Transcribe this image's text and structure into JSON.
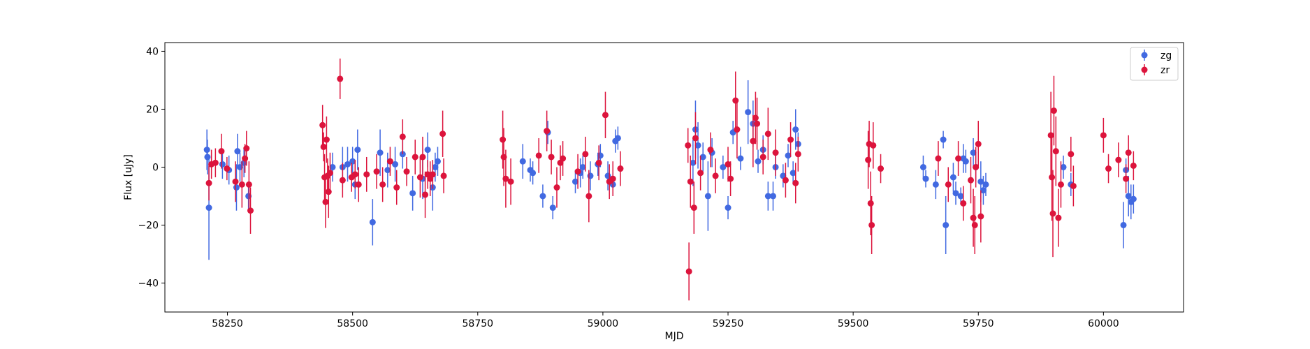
{
  "chart_data": {
    "type": "scatter",
    "title": "",
    "xlabel": "MJD",
    "ylabel": "Flux [uJy]",
    "xlim": [
      58125,
      60160
    ],
    "ylim": [
      -50,
      43
    ],
    "xticks": [
      58250,
      58500,
      58750,
      59000,
      59250,
      59500,
      59750,
      60000
    ],
    "yticks": [
      -40,
      -20,
      0,
      20,
      40
    ],
    "legend": {
      "placement": "top-right"
    },
    "grid": false,
    "series": [
      {
        "name": "zg",
        "color": "#4169e1",
        "points": [
          [
            58209,
            6,
            7
          ],
          [
            58210,
            3.5,
            6
          ],
          [
            58213,
            -14,
            18
          ],
          [
            58240,
            1,
            5
          ],
          [
            58253,
            -1,
            5
          ],
          [
            58268,
            -7,
            8
          ],
          [
            58270,
            5.5,
            6
          ],
          [
            58275,
            0,
            5
          ],
          [
            58283,
            1.5,
            5
          ],
          [
            58292,
            -10,
            5
          ],
          [
            58460,
            0,
            5
          ],
          [
            58480,
            0,
            7
          ],
          [
            58490,
            1,
            6
          ],
          [
            58500,
            2,
            5
          ],
          [
            58505,
            -6,
            5
          ],
          [
            58510,
            6,
            7
          ],
          [
            58540,
            -19,
            8
          ],
          [
            58555,
            5,
            8
          ],
          [
            58570,
            -1,
            6
          ],
          [
            58585,
            1,
            6
          ],
          [
            58600,
            4.5,
            5
          ],
          [
            58620,
            -9,
            6
          ],
          [
            58640,
            -4,
            7
          ],
          [
            58650,
            6,
            6
          ],
          [
            58660,
            -7,
            8
          ],
          [
            58665,
            0,
            5
          ],
          [
            58670,
            2,
            5
          ],
          [
            58840,
            2,
            6
          ],
          [
            58855,
            -1,
            4
          ],
          [
            58860,
            -2,
            4
          ],
          [
            58880,
            -10,
            4
          ],
          [
            58890,
            12,
            4
          ],
          [
            58900,
            -14,
            4
          ],
          [
            58945,
            -5,
            4
          ],
          [
            58955,
            -2,
            5
          ],
          [
            58960,
            0,
            4
          ],
          [
            58975,
            -3,
            5
          ],
          [
            58990,
            1,
            4
          ],
          [
            58995,
            4,
            4
          ],
          [
            59010,
            -3,
            5
          ],
          [
            59020,
            -6,
            4
          ],
          [
            59025,
            9,
            4
          ],
          [
            59030,
            10,
            4
          ],
          [
            59180,
            1.5,
            8
          ],
          [
            59185,
            13,
            10
          ],
          [
            59190,
            7.5,
            8
          ],
          [
            59200,
            3.5,
            5
          ],
          [
            59210,
            -10,
            12
          ],
          [
            59218,
            5,
            5
          ],
          [
            59240,
            0,
            4
          ],
          [
            59250,
            -14,
            4
          ],
          [
            59260,
            12,
            4
          ],
          [
            59275,
            3,
            4
          ],
          [
            59290,
            19,
            11
          ],
          [
            59300,
            15,
            8
          ],
          [
            59310,
            2,
            4
          ],
          [
            59320,
            6,
            5
          ],
          [
            59330,
            -10,
            5
          ],
          [
            59340,
            -10,
            5
          ],
          [
            59345,
            0,
            4
          ],
          [
            59360,
            -3,
            4
          ],
          [
            59370,
            4,
            4
          ],
          [
            59380,
            -2,
            4
          ],
          [
            59385,
            13,
            7
          ],
          [
            59390,
            8,
            4
          ],
          [
            59640,
            0,
            4
          ],
          [
            59645,
            -4,
            3
          ],
          [
            59665,
            -6,
            5
          ],
          [
            59680,
            9.5,
            3
          ],
          [
            59685,
            -20,
            10
          ],
          [
            59700,
            -3.5,
            5
          ],
          [
            59705,
            -9,
            4
          ],
          [
            59715,
            -10,
            3
          ],
          [
            59720,
            3,
            5
          ],
          [
            59725,
            2,
            4
          ],
          [
            59740,
            5,
            5
          ],
          [
            59745,
            0,
            5
          ],
          [
            59755,
            -5,
            7
          ],
          [
            59760,
            -8,
            5
          ],
          [
            59765,
            -6,
            4
          ],
          [
            59920,
            0,
            4
          ],
          [
            59935,
            -6,
            4
          ],
          [
            60040,
            -20,
            8
          ],
          [
            60045,
            -1,
            4
          ],
          [
            60050,
            -10,
            7
          ],
          [
            60055,
            -12,
            6
          ],
          [
            60060,
            -11,
            5
          ]
        ]
      },
      {
        "name": "zr",
        "color": "#dc143c",
        "points": [
          [
            58213,
            -5.5,
            6
          ],
          [
            58218,
            1,
            5
          ],
          [
            58226,
            1.5,
            5
          ],
          [
            58238,
            5.5,
            6
          ],
          [
            58249,
            -0.5,
            4
          ],
          [
            58266,
            -5,
            7
          ],
          [
            58279,
            -6,
            8
          ],
          [
            58285,
            3,
            5
          ],
          [
            58288,
            6.5,
            6
          ],
          [
            58293,
            -6,
            8
          ],
          [
            58296,
            -15,
            8
          ],
          [
            58440,
            14.5,
            7
          ],
          [
            58442,
            7,
            5
          ],
          [
            58444,
            -3.5,
            8
          ],
          [
            58446,
            -12,
            9
          ],
          [
            58448,
            9.5,
            8
          ],
          [
            58450,
            -3,
            6
          ],
          [
            58452,
            -8.5,
            9
          ],
          [
            58455,
            -2,
            7
          ],
          [
            58475,
            30.5,
            7
          ],
          [
            58480,
            -4.5,
            6
          ],
          [
            58498,
            -3.5,
            5
          ],
          [
            58505,
            -2.5,
            5
          ],
          [
            58512,
            -6,
            6
          ],
          [
            58528,
            -2.5,
            6
          ],
          [
            58548,
            -1.5,
            6
          ],
          [
            58560,
            -6,
            6
          ],
          [
            58575,
            2,
            5
          ],
          [
            58588,
            -7,
            6
          ],
          [
            58600,
            10.5,
            6
          ],
          [
            58608,
            -1.5,
            5
          ],
          [
            58625,
            3.5,
            6
          ],
          [
            58635,
            -3.5,
            7
          ],
          [
            58640,
            3.5,
            7
          ],
          [
            58645,
            -9.5,
            8
          ],
          [
            58650,
            -2.5,
            5
          ],
          [
            58655,
            -4,
            6
          ],
          [
            58660,
            -2.5,
            5
          ],
          [
            58680,
            11.5,
            8
          ],
          [
            58682,
            -3,
            6
          ],
          [
            58800,
            9.5,
            10
          ],
          [
            58802,
            3.5,
            10
          ],
          [
            58806,
            -4,
            10
          ],
          [
            58816,
            -5,
            8
          ],
          [
            58872,
            4,
            6
          ],
          [
            58888,
            12.5,
            7
          ],
          [
            58897,
            3.5,
            6
          ],
          [
            58908,
            -7,
            7
          ],
          [
            58915,
            1.5,
            6
          ],
          [
            58920,
            3,
            6
          ],
          [
            58950,
            -1.5,
            6
          ],
          [
            58965,
            4.5,
            6
          ],
          [
            58972,
            -10,
            9
          ],
          [
            58992,
            1.5,
            6
          ],
          [
            59005,
            18,
            8
          ],
          [
            59013,
            -5,
            6
          ],
          [
            59020,
            -4,
            6
          ],
          [
            59035,
            -0.5,
            6
          ],
          [
            59170,
            7.5,
            6
          ],
          [
            59172,
            -36,
            10
          ],
          [
            59175,
            -5,
            9
          ],
          [
            59182,
            -14,
            9
          ],
          [
            59185,
            10,
            9
          ],
          [
            59195,
            -2,
            6
          ],
          [
            59215,
            6,
            6
          ],
          [
            59225,
            -3,
            6
          ],
          [
            59250,
            1,
            6
          ],
          [
            59255,
            -4,
            6
          ],
          [
            59265,
            23,
            10
          ],
          [
            59268,
            13,
            10
          ],
          [
            59300,
            9,
            9
          ],
          [
            59305,
            17,
            9
          ],
          [
            59308,
            15,
            9
          ],
          [
            59320,
            3.5,
            6
          ],
          [
            59330,
            11.5,
            9
          ],
          [
            59345,
            5,
            8
          ],
          [
            59365,
            -4.5,
            6
          ],
          [
            59375,
            9.5,
            6
          ],
          [
            59385,
            -5.5,
            7
          ],
          [
            59390,
            4.5,
            6
          ],
          [
            59530,
            2.5,
            10
          ],
          [
            59532,
            8,
            8
          ],
          [
            59535,
            -12.5,
            11
          ],
          [
            59537,
            -20,
            10
          ],
          [
            59540,
            7.5,
            8
          ],
          [
            59555,
            -0.5,
            5
          ],
          [
            59670,
            3,
            6
          ],
          [
            59690,
            -6,
            6
          ],
          [
            59710,
            3,
            6
          ],
          [
            59720,
            -12.5,
            6
          ],
          [
            59735,
            -4.5,
            8
          ],
          [
            59740,
            -17.5,
            10
          ],
          [
            59743,
            -20,
            10
          ],
          [
            59745,
            0,
            7
          ],
          [
            59750,
            8,
            8
          ],
          [
            59755,
            -17,
            9
          ],
          [
            59895,
            11,
            15
          ],
          [
            59897,
            -3.5,
            15
          ],
          [
            59899,
            -16,
            15
          ],
          [
            59901,
            19.5,
            12
          ],
          [
            59905,
            5.5,
            12
          ],
          [
            59910,
            -17.5,
            10
          ],
          [
            59915,
            -6,
            8
          ],
          [
            59935,
            4.5,
            6
          ],
          [
            59940,
            -6.5,
            7
          ],
          [
            60000,
            11,
            6
          ],
          [
            60010,
            -0.5,
            5
          ],
          [
            60030,
            2.5,
            6
          ],
          [
            60045,
            -4,
            5
          ],
          [
            60050,
            5,
            6
          ],
          [
            60060,
            0.5,
            5
          ]
        ]
      }
    ]
  }
}
